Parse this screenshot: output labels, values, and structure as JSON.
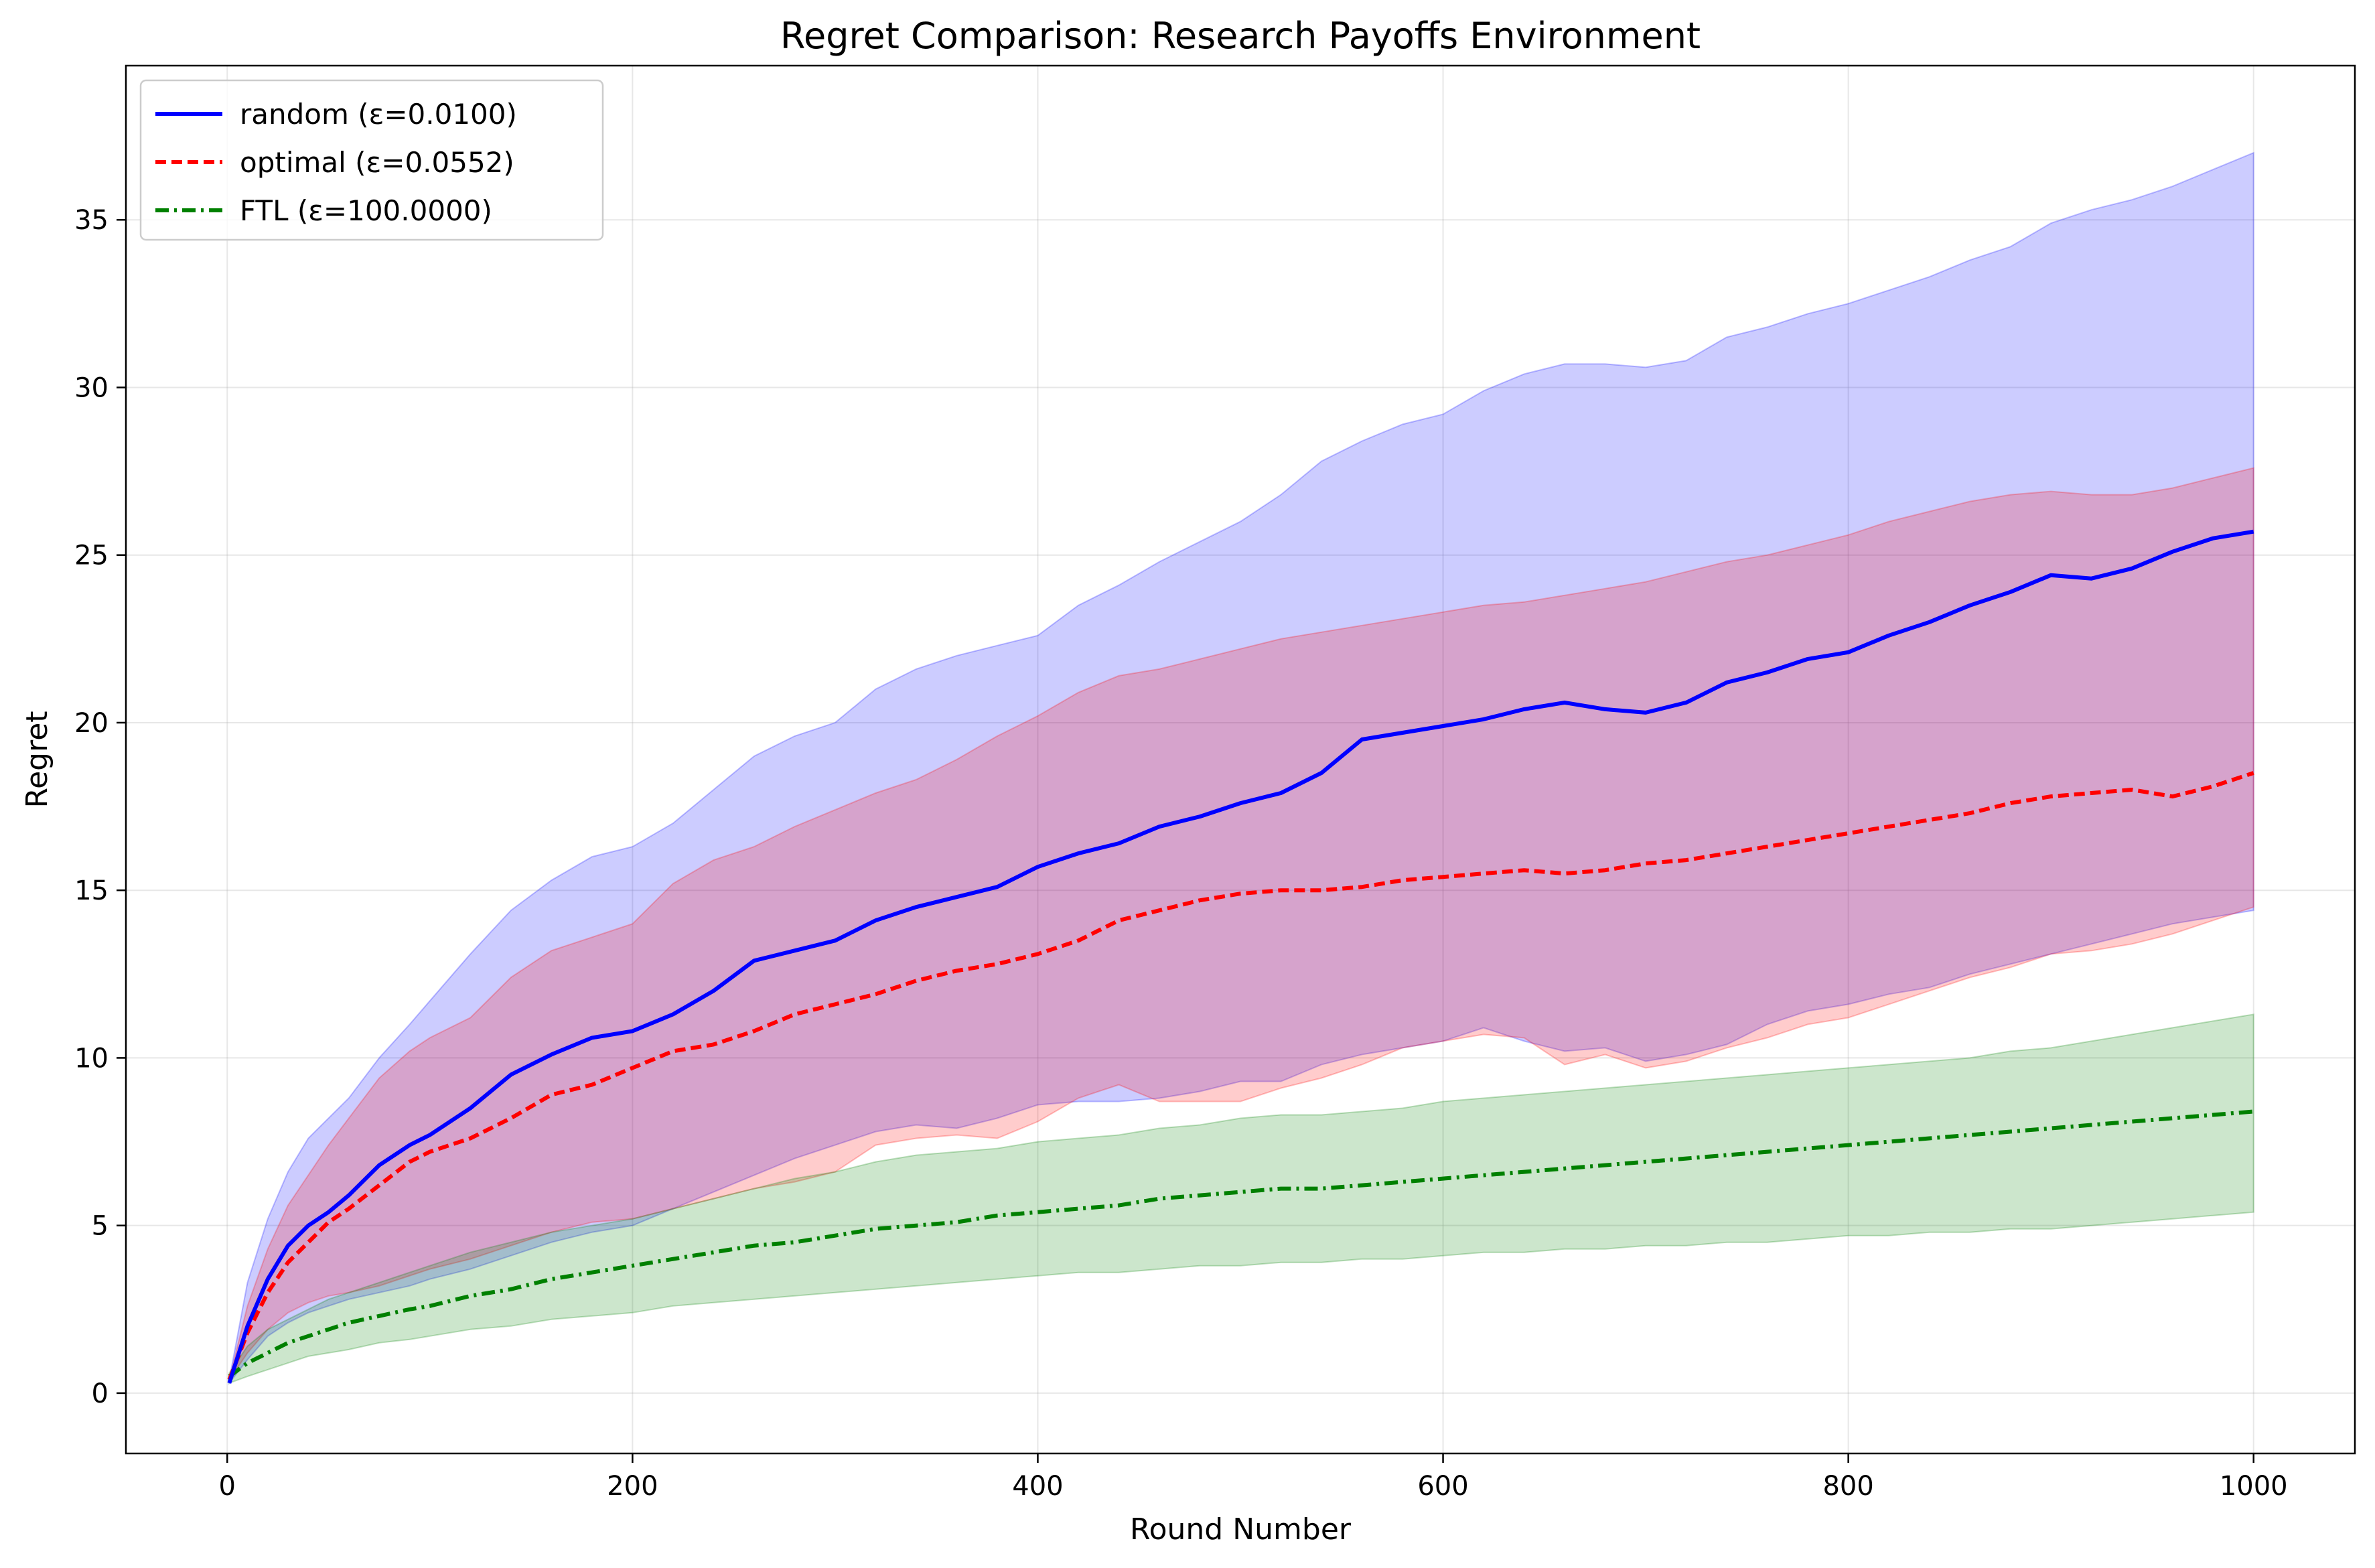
{
  "chart_data": {
    "type": "line",
    "title": "Regret Comparison: Research Payoffs Environment",
    "xlabel": "Round Number",
    "ylabel": "Regret",
    "xlim": [
      -50,
      1050
    ],
    "ylim": [
      -1.8,
      39.6
    ],
    "x_ticks": [
      0,
      200,
      400,
      600,
      800,
      1000
    ],
    "y_ticks": [
      0,
      5,
      10,
      15,
      20,
      25,
      30,
      35
    ],
    "grid": true,
    "legend_position": "top-left",
    "series": [
      {
        "name": "random (ε=0.0100)",
        "color": "#0000ff",
        "style": "solid",
        "band_color": "#0000ff",
        "x": [
          1,
          10,
          20,
          30,
          40,
          50,
          60,
          75,
          90,
          100,
          120,
          140,
          160,
          180,
          200,
          220,
          240,
          260,
          280,
          300,
          320,
          340,
          360,
          380,
          400,
          420,
          440,
          460,
          480,
          500,
          520,
          540,
          560,
          580,
          600,
          620,
          640,
          660,
          680,
          700,
          720,
          740,
          760,
          780,
          800,
          820,
          840,
          860,
          880,
          900,
          920,
          940,
          960,
          980,
          1000
        ],
        "y": [
          0.3,
          2.0,
          3.4,
          4.4,
          5.0,
          5.4,
          5.9,
          6.8,
          7.4,
          7.7,
          8.5,
          9.5,
          10.1,
          10.6,
          10.8,
          11.3,
          12.0,
          12.9,
          13.2,
          13.5,
          14.1,
          14.5,
          14.8,
          15.1,
          15.7,
          16.1,
          16.4,
          16.9,
          17.2,
          17.6,
          17.9,
          18.5,
          19.5,
          19.7,
          19.9,
          20.1,
          20.4,
          20.6,
          20.4,
          20.3,
          20.6,
          21.2,
          21.5,
          21.9,
          22.1,
          22.6,
          23.0,
          23.5,
          23.9,
          24.4,
          24.3,
          24.6,
          25.1,
          25.5,
          25.7
        ],
        "lower": [
          0.3,
          1.0,
          1.7,
          2.1,
          2.4,
          2.6,
          2.8,
          3.0,
          3.2,
          3.4,
          3.7,
          4.1,
          4.5,
          4.8,
          5.0,
          5.5,
          6.0,
          6.5,
          7.0,
          7.4,
          7.8,
          8.0,
          7.9,
          8.2,
          8.6,
          8.7,
          8.7,
          8.8,
          9.0,
          9.3,
          9.3,
          9.8,
          10.1,
          10.3,
          10.5,
          10.9,
          10.5,
          10.2,
          10.3,
          9.9,
          10.1,
          10.4,
          11.0,
          11.4,
          11.6,
          11.9,
          12.1,
          12.5,
          12.8,
          13.1,
          13.4,
          13.7,
          14.0,
          14.2,
          14.4
        ],
        "upper": [
          0.4,
          3.3,
          5.2,
          6.6,
          7.6,
          8.2,
          8.8,
          10.0,
          11.0,
          11.7,
          13.1,
          14.4,
          15.3,
          16.0,
          16.3,
          17.0,
          18.0,
          19.0,
          19.6,
          20.0,
          21.0,
          21.6,
          22.0,
          22.3,
          22.6,
          23.5,
          24.1,
          24.8,
          25.4,
          26.0,
          26.8,
          27.8,
          28.4,
          28.9,
          29.2,
          29.9,
          30.4,
          30.7,
          30.7,
          30.6,
          30.8,
          31.5,
          31.8,
          32.2,
          32.5,
          32.9,
          33.3,
          33.8,
          34.2,
          34.9,
          35.3,
          35.6,
          36.0,
          36.5,
          37.0
        ]
      },
      {
        "name": "optimal (ε=0.0552)",
        "color": "#ff0000",
        "style": "dashed",
        "band_color": "#ff0000",
        "x": [
          1,
          10,
          20,
          30,
          40,
          50,
          60,
          75,
          90,
          100,
          120,
          140,
          160,
          180,
          200,
          220,
          240,
          260,
          280,
          300,
          320,
          340,
          360,
          380,
          400,
          420,
          440,
          460,
          480,
          500,
          520,
          540,
          560,
          580,
          600,
          620,
          640,
          660,
          680,
          700,
          720,
          740,
          760,
          780,
          800,
          820,
          840,
          860,
          880,
          900,
          920,
          940,
          960,
          980,
          1000
        ],
        "y": [
          0.4,
          1.8,
          3.0,
          3.9,
          4.5,
          5.1,
          5.5,
          6.2,
          6.9,
          7.2,
          7.6,
          8.2,
          8.9,
          9.2,
          9.7,
          10.2,
          10.4,
          10.8,
          11.3,
          11.6,
          11.9,
          12.3,
          12.6,
          12.8,
          13.1,
          13.5,
          14.1,
          14.4,
          14.7,
          14.9,
          15.0,
          15.0,
          15.1,
          15.3,
          15.4,
          15.5,
          15.6,
          15.5,
          15.6,
          15.8,
          15.9,
          16.1,
          16.3,
          16.5,
          16.7,
          16.9,
          17.1,
          17.3,
          17.6,
          17.8,
          17.9,
          18.0,
          17.8,
          18.1,
          18.5
        ],
        "lower": [
          0.4,
          1.2,
          1.9,
          2.4,
          2.7,
          2.9,
          3.0,
          3.2,
          3.5,
          3.7,
          4.0,
          4.4,
          4.8,
          5.1,
          5.2,
          5.5,
          5.8,
          6.1,
          6.3,
          6.6,
          7.4,
          7.6,
          7.7,
          7.6,
          8.1,
          8.8,
          9.2,
          8.7,
          8.7,
          8.7,
          9.1,
          9.4,
          9.8,
          10.3,
          10.5,
          10.7,
          10.6,
          9.8,
          10.1,
          9.7,
          9.9,
          10.3,
          10.6,
          11.0,
          11.2,
          11.6,
          12.0,
          12.4,
          12.7,
          13.1,
          13.2,
          13.4,
          13.7,
          14.1,
          14.5
        ],
        "upper": [
          0.4,
          2.6,
          4.3,
          5.6,
          6.5,
          7.4,
          8.2,
          9.4,
          10.2,
          10.6,
          11.2,
          12.4,
          13.2,
          13.6,
          14.0,
          15.2,
          15.9,
          16.3,
          16.9,
          17.4,
          17.9,
          18.3,
          18.9,
          19.6,
          20.2,
          20.9,
          21.4,
          21.6,
          21.9,
          22.2,
          22.5,
          22.7,
          22.9,
          23.1,
          23.3,
          23.5,
          23.6,
          23.8,
          24.0,
          24.2,
          24.5,
          24.8,
          25.0,
          25.3,
          25.6,
          26.0,
          26.3,
          26.6,
          26.8,
          26.9,
          26.8,
          26.8,
          27.0,
          27.3,
          27.6
        ]
      },
      {
        "name": "FTL (ε=100.0000)",
        "color": "#008000",
        "style": "dashdot",
        "band_color": "#008000",
        "x": [
          1,
          10,
          20,
          30,
          40,
          50,
          60,
          75,
          90,
          100,
          120,
          140,
          160,
          180,
          200,
          220,
          240,
          260,
          280,
          300,
          320,
          340,
          360,
          380,
          400,
          420,
          440,
          460,
          480,
          500,
          520,
          540,
          560,
          580,
          600,
          620,
          640,
          660,
          680,
          700,
          720,
          740,
          760,
          780,
          800,
          820,
          840,
          860,
          880,
          900,
          920,
          940,
          960,
          980,
          1000
        ],
        "y": [
          0.5,
          0.9,
          1.2,
          1.5,
          1.7,
          1.9,
          2.1,
          2.3,
          2.5,
          2.6,
          2.9,
          3.1,
          3.4,
          3.6,
          3.8,
          4.0,
          4.2,
          4.4,
          4.5,
          4.7,
          4.9,
          5.0,
          5.1,
          5.3,
          5.4,
          5.5,
          5.6,
          5.8,
          5.9,
          6.0,
          6.1,
          6.1,
          6.2,
          6.3,
          6.4,
          6.5,
          6.6,
          6.7,
          6.8,
          6.9,
          7.0,
          7.1,
          7.2,
          7.3,
          7.4,
          7.5,
          7.6,
          7.7,
          7.8,
          7.9,
          8.0,
          8.1,
          8.2,
          8.3,
          8.4
        ],
        "lower": [
          0.3,
          0.5,
          0.7,
          0.9,
          1.1,
          1.2,
          1.3,
          1.5,
          1.6,
          1.7,
          1.9,
          2.0,
          2.2,
          2.3,
          2.4,
          2.6,
          2.7,
          2.8,
          2.9,
          3.0,
          3.1,
          3.2,
          3.3,
          3.4,
          3.5,
          3.6,
          3.6,
          3.7,
          3.8,
          3.8,
          3.9,
          3.9,
          4.0,
          4.0,
          4.1,
          4.2,
          4.2,
          4.3,
          4.3,
          4.4,
          4.4,
          4.5,
          4.5,
          4.6,
          4.7,
          4.7,
          4.8,
          4.8,
          4.9,
          4.9,
          5.0,
          5.1,
          5.2,
          5.3,
          5.4
        ],
        "upper": [
          0.6,
          1.4,
          1.9,
          2.2,
          2.5,
          2.8,
          3.0,
          3.3,
          3.6,
          3.8,
          4.2,
          4.5,
          4.8,
          5.0,
          5.2,
          5.5,
          5.8,
          6.1,
          6.4,
          6.6,
          6.9,
          7.1,
          7.2,
          7.3,
          7.5,
          7.6,
          7.7,
          7.9,
          8.0,
          8.2,
          8.3,
          8.3,
          8.4,
          8.5,
          8.7,
          8.8,
          8.9,
          9.0,
          9.1,
          9.2,
          9.3,
          9.4,
          9.5,
          9.6,
          9.7,
          9.8,
          9.9,
          10.0,
          10.2,
          10.3,
          10.5,
          10.7,
          10.9,
          11.1,
          11.3
        ]
      }
    ]
  }
}
